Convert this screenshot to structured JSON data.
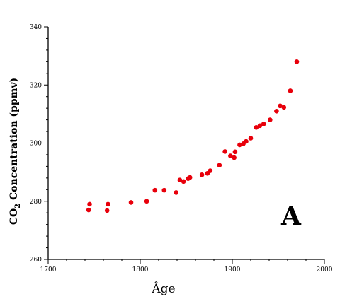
{
  "chart_data": {
    "type": "scatter",
    "title": "",
    "xlabel": "Âge",
    "ylabel_main": "CO",
    "ylabel_sub": "2",
    "ylabel_rest": "Concentration (ppmv)",
    "annotation": "A",
    "xlim": [
      1700,
      2000
    ],
    "ylim": [
      260,
      340
    ],
    "x_ticks": [
      1700,
      1800,
      1900,
      2000
    ],
    "y_ticks": [
      260,
      280,
      300,
      320,
      340
    ],
    "grid": false,
    "legend": "none",
    "marker_color": "#e8000b",
    "points": [
      {
        "x": 1744,
        "y": 277.0
      },
      {
        "x": 1745,
        "y": 279.0
      },
      {
        "x": 1764,
        "y": 276.8
      },
      {
        "x": 1765,
        "y": 279.0
      },
      {
        "x": 1790,
        "y": 279.6
      },
      {
        "x": 1807,
        "y": 280.0
      },
      {
        "x": 1816,
        "y": 283.8
      },
      {
        "x": 1826,
        "y": 283.8
      },
      {
        "x": 1839,
        "y": 283.0
      },
      {
        "x": 1843,
        "y": 287.3
      },
      {
        "x": 1847,
        "y": 286.8
      },
      {
        "x": 1852,
        "y": 287.8
      },
      {
        "x": 1854,
        "y": 288.2
      },
      {
        "x": 1867,
        "y": 289.1
      },
      {
        "x": 1873,
        "y": 289.6
      },
      {
        "x": 1876,
        "y": 290.5
      },
      {
        "x": 1886,
        "y": 292.4
      },
      {
        "x": 1892,
        "y": 297.1
      },
      {
        "x": 1898,
        "y": 295.6
      },
      {
        "x": 1902,
        "y": 295.0
      },
      {
        "x": 1903,
        "y": 297.0
      },
      {
        "x": 1908,
        "y": 299.4
      },
      {
        "x": 1912,
        "y": 299.8
      },
      {
        "x": 1915,
        "y": 300.6
      },
      {
        "x": 1920,
        "y": 301.7
      },
      {
        "x": 1926,
        "y": 305.4
      },
      {
        "x": 1930,
        "y": 306.0
      },
      {
        "x": 1934,
        "y": 306.6
      },
      {
        "x": 1941,
        "y": 308.0
      },
      {
        "x": 1948,
        "y": 311.0
      },
      {
        "x": 1952,
        "y": 312.8
      },
      {
        "x": 1956,
        "y": 312.3
      },
      {
        "x": 1963,
        "y": 318.0
      },
      {
        "x": 1970,
        "y": 328.0
      }
    ]
  }
}
